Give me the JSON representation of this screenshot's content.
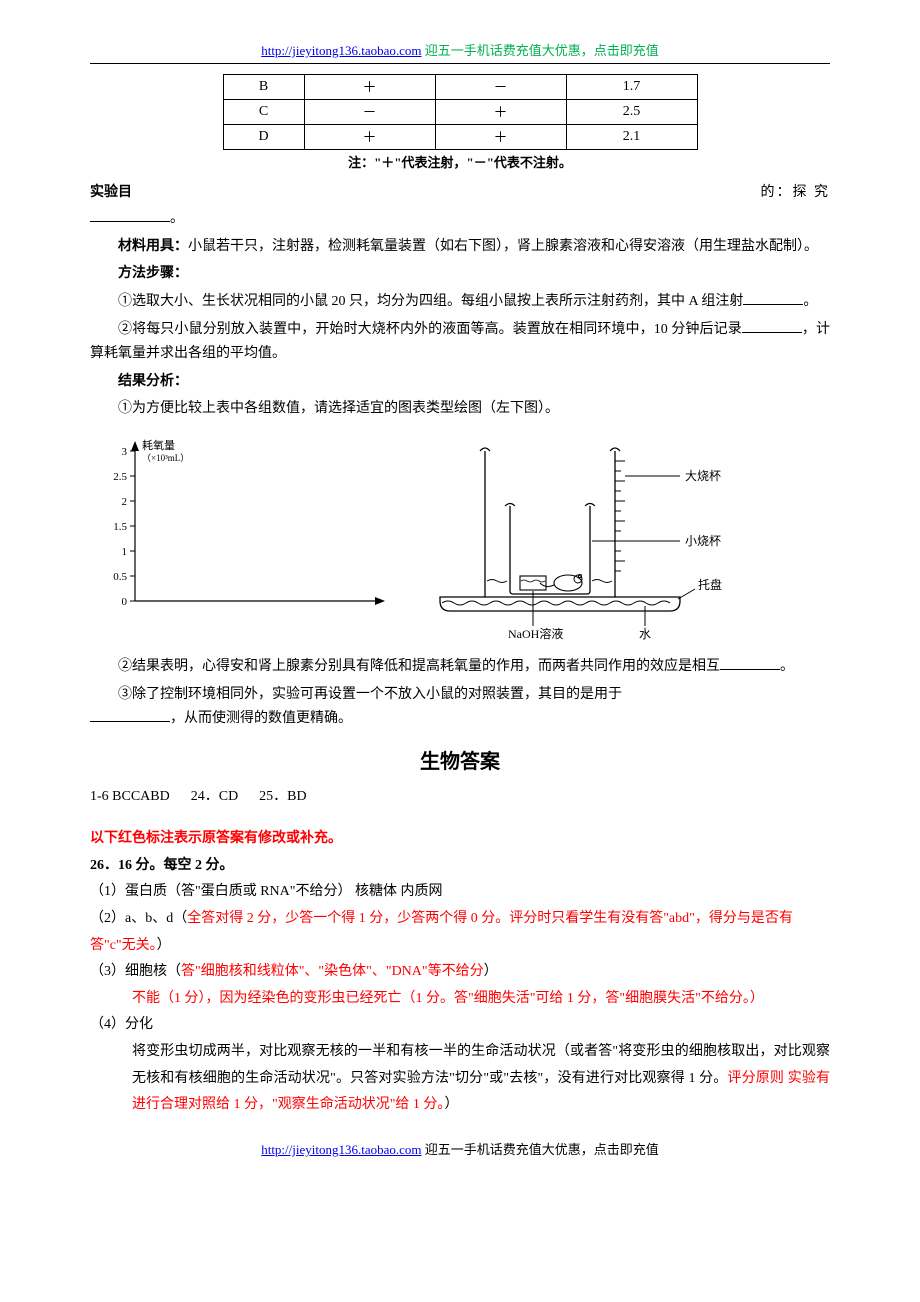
{
  "header": {
    "url": "http://jieyitong136.taobao.com",
    "tail": " 迎五一手机话费充值大优惠，点击即充值"
  },
  "table": {
    "rows": [
      [
        "B",
        "＋",
        "－",
        "1.7"
      ],
      [
        "C",
        "－",
        "＋",
        "2.5"
      ],
      [
        "D",
        "＋",
        "＋",
        "2.1"
      ]
    ],
    "note": "注：\"＋\"代表注射，\"－\"代表不注射。"
  },
  "body": {
    "exp_goal_left": "实验目",
    "exp_goal_right": "的：探 究",
    "period": "。",
    "materials_label": "材料用具：",
    "materials_text": "小鼠若干只，注射器，检测耗氧量装置（如右下图），肾上腺素溶液和心得安溶液（用生理盐水配制）。",
    "method_label": "方法步骤：",
    "step1": "①选取大小、生长状况相同的小鼠 20 只，均分为四组。每组小鼠按上表所示注射药剂，其中 A 组注射",
    "step2_a": "②将每只小鼠分别放入装置中，开始时大烧杯内外的液面等高。装置放在相同环境中，10 分钟后记录",
    "step2_b": "，计算耗氧量并求出各组的平均值。",
    "result_label": "结果分析：",
    "result1": "①为方便比较上表中各组数值，请选择适宜的图表类型绘图（左下图）。",
    "result2_a": "②结果表明，心得安和肾上腺素分别具有降低和提高耗氧量的作用，而两者共同作用的效应是相互",
    "result3_a": "③除了控制环境相同外，实验可再设置一个不放入小鼠的对照装置，其目的是用于",
    "result3_b": "，从而使测得的数值更精确。"
  },
  "chart": {
    "ylabel1": "耗氧量",
    "ylabel2": "（×10³mL）",
    "ymax": 3,
    "yticks": [
      0,
      0.5,
      1,
      1.5,
      2,
      2.5,
      3
    ],
    "axis_color": "#000000",
    "bg": "#ffffff",
    "font_size": 11
  },
  "apparatus": {
    "labels": {
      "big_cup": "大烧杯",
      "small_cup": "小烧杯",
      "tray": "托盘",
      "naoh": "NaOH溶液",
      "water": "水"
    },
    "line_color": "#000000",
    "font_size": 12
  },
  "answers": {
    "title": "生物答案",
    "mc": "1-6 BCCABD      24．CD      25．BD",
    "red_note": "以下红色标注表示原答案有修改或补充。",
    "q26_head": "26．16 分。每空 2 分。",
    "q26_1": "（1）蛋白质（答\"蛋白质或 RNA\"不给分）    核糖体    内质网",
    "q26_2a": "（2）a、b、d（",
    "q26_2b": "全答对得 2 分，少答一个得 1 分，少答两个得 0 分。评分时只看学生有没有答\"abd\"，得分与是否有答\"c\"无关。",
    "q26_2c": "）",
    "q26_3a": "（3）细胞核（",
    "q26_3b": "答\"细胞核和线粒体\"、\"染色体\"、\"DNA\"等不给分",
    "q26_3c": "）",
    "q26_3d_a": "不能（1 分），因为经染色的变形虫已经死亡（1 分。答\"细胞失活\"可给 1 分，答\"细胞膜失活\"不给分。）",
    "q26_4_head": "（4）分化",
    "q26_4_a": "将变形虫切成两半，对比观察无核的一半和有核一半的生命活动状况（或者答\"将变形虫的细胞核取出，对比观察无核和有核细胞的生命活动状况\"。只答对实验方法\"切分\"或\"去核\"，没有进行对比观察得 1 分。",
    "q26_4_b": "评分原则 实验有进行合理对照给 1 分，\"观察生命活动状况\"给 1 分。",
    "q26_4_c": "）"
  },
  "footer": {
    "url": "http://jieyitong136.taobao.com",
    "tail": " 迎五一手机话费充值大优惠，点击即充值"
  }
}
